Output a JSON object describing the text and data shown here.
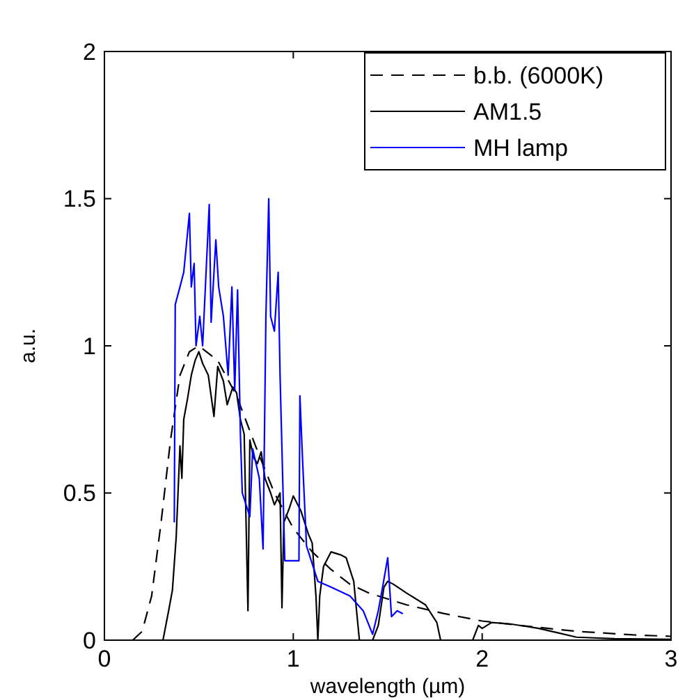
{
  "chart_data": {
    "type": "line",
    "xlabel": "wavelength (µm)",
    "ylabel": "a.u.",
    "xlim": [
      0,
      3
    ],
    "ylim": [
      0,
      2
    ],
    "xticks": [
      0,
      1,
      2,
      3
    ],
    "yticks": [
      0,
      0.5,
      1,
      1.5,
      2
    ],
    "grid": false,
    "legend": "top right",
    "marker": "none",
    "series": [
      {
        "name": "b.b. (6000K)",
        "color": "#000000",
        "line_style": "dashed",
        "x": [
          0.15,
          0.2,
          0.25,
          0.3,
          0.35,
          0.4,
          0.45,
          0.5,
          0.6,
          0.7,
          0.8,
          0.9,
          1.0,
          1.1,
          1.2,
          1.3,
          1.4,
          1.5,
          1.6,
          1.8,
          2.0,
          2.2,
          2.5,
          2.8,
          3.0
        ],
        "values": [
          0,
          0.03,
          0.15,
          0.4,
          0.68,
          0.9,
          0.98,
          1.0,
          0.95,
          0.83,
          0.66,
          0.5,
          0.38,
          0.3,
          0.24,
          0.19,
          0.16,
          0.14,
          0.12,
          0.09,
          0.065,
          0.05,
          0.03,
          0.018,
          0.013
        ]
      },
      {
        "name": "AM1.5",
        "color": "#000000",
        "line_style": "solid",
        "x": [
          0.3,
          0.31,
          0.34,
          0.36,
          0.38,
          0.4,
          0.41,
          0.42,
          0.44,
          0.46,
          0.48,
          0.5,
          0.52,
          0.55,
          0.58,
          0.6,
          0.63,
          0.65,
          0.68,
          0.7,
          0.72,
          0.74,
          0.76,
          0.77,
          0.79,
          0.81,
          0.83,
          0.85,
          0.88,
          0.9,
          0.93,
          0.94,
          0.95,
          0.98,
          1.0,
          1.04,
          1.08,
          1.1,
          1.12,
          1.13,
          1.14,
          1.16,
          1.2,
          1.25,
          1.28,
          1.32,
          1.35,
          1.38,
          1.42,
          1.45,
          1.48,
          1.5,
          1.53,
          1.6,
          1.7,
          1.76,
          1.78,
          1.85,
          1.95,
          1.98,
          2.0,
          2.05,
          2.15,
          2.3,
          2.4,
          2.5,
          2.7,
          3.0
        ],
        "values": [
          0,
          0.0,
          0.1,
          0.17,
          0.35,
          0.66,
          0.55,
          0.75,
          0.82,
          0.9,
          0.95,
          0.98,
          0.94,
          0.9,
          0.76,
          0.93,
          0.88,
          0.8,
          0.86,
          0.84,
          0.75,
          0.7,
          0.1,
          0.68,
          0.62,
          0.6,
          0.64,
          0.55,
          0.5,
          0.46,
          0.5,
          0.11,
          0.4,
          0.45,
          0.49,
          0.44,
          0.36,
          0.33,
          0.15,
          0.0,
          0.15,
          0.25,
          0.3,
          0.29,
          0.28,
          0.2,
          0.0,
          0.0,
          0.0,
          0.05,
          0.18,
          0.2,
          0.19,
          0.16,
          0.12,
          0.06,
          0.0,
          0.0,
          0.0,
          0.05,
          0.04,
          0.06,
          0.055,
          0.04,
          0.025,
          0.01,
          0.005,
          0.003
        ]
      },
      {
        "name": "MH lamp",
        "color": "#0000ff",
        "line_style": "solid",
        "x": [
          0.37,
          0.375,
          0.4,
          0.42,
          0.45,
          0.46,
          0.475,
          0.485,
          0.505,
          0.52,
          0.555,
          0.565,
          0.59,
          0.605,
          0.63,
          0.655,
          0.675,
          0.69,
          0.705,
          0.72,
          0.73,
          0.77,
          0.785,
          0.82,
          0.84,
          0.855,
          0.87,
          0.88,
          0.9,
          0.92,
          0.93,
          0.955,
          1.03,
          1.035,
          1.05,
          1.07,
          1.13,
          1.2,
          1.3,
          1.37,
          1.42,
          1.45,
          1.47,
          1.5,
          1.52,
          1.55,
          1.58
        ],
        "values": [
          0.4,
          1.14,
          1.2,
          1.25,
          1.45,
          1.2,
          1.28,
          1.0,
          1.1,
          1.0,
          1.48,
          1.08,
          1.36,
          1.2,
          1.1,
          0.9,
          1.2,
          0.85,
          1.19,
          0.7,
          0.5,
          0.42,
          0.65,
          0.55,
          0.31,
          1.1,
          1.5,
          1.1,
          1.05,
          1.25,
          0.9,
          0.27,
          0.27,
          0.83,
          0.6,
          0.32,
          0.2,
          0.18,
          0.15,
          0.1,
          0.02,
          0.1,
          0.17,
          0.28,
          0.08,
          0.1,
          0.09
        ]
      }
    ]
  }
}
